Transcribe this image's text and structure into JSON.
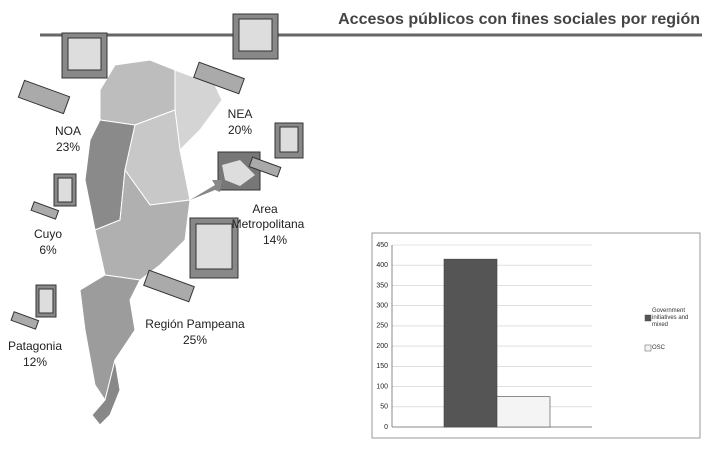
{
  "title": "Accesos públicos con fines sociales por región",
  "regions": [
    {
      "lines": [
        "NOA"
      ],
      "percent": "23%"
    },
    {
      "lines": [
        "NEA"
      ],
      "percent": "20%"
    },
    {
      "lines": [
        "Cuyo"
      ],
      "percent": "6%"
    },
    {
      "lines": [
        "Area",
        "Metropolitana"
      ],
      "percent": "14%"
    },
    {
      "lines": [
        "Región Pampeana"
      ],
      "percent": "25%"
    },
    {
      "lines": [
        "Patagonia"
      ],
      "percent": "12%"
    }
  ],
  "chart_data": {
    "type": "bar",
    "categories": [
      null
    ],
    "series": [
      {
        "name": "Government initiatives and mixed",
        "color": "#555555",
        "values": [
          415
        ]
      },
      {
        "name": "OSC",
        "color": "#f4f4f4",
        "values": [
          75
        ]
      }
    ],
    "ylim": [
      0,
      450
    ],
    "yticks": [
      0,
      50,
      100,
      150,
      200,
      250,
      300,
      350,
      400,
      450
    ],
    "grid": true,
    "legend": "right"
  }
}
